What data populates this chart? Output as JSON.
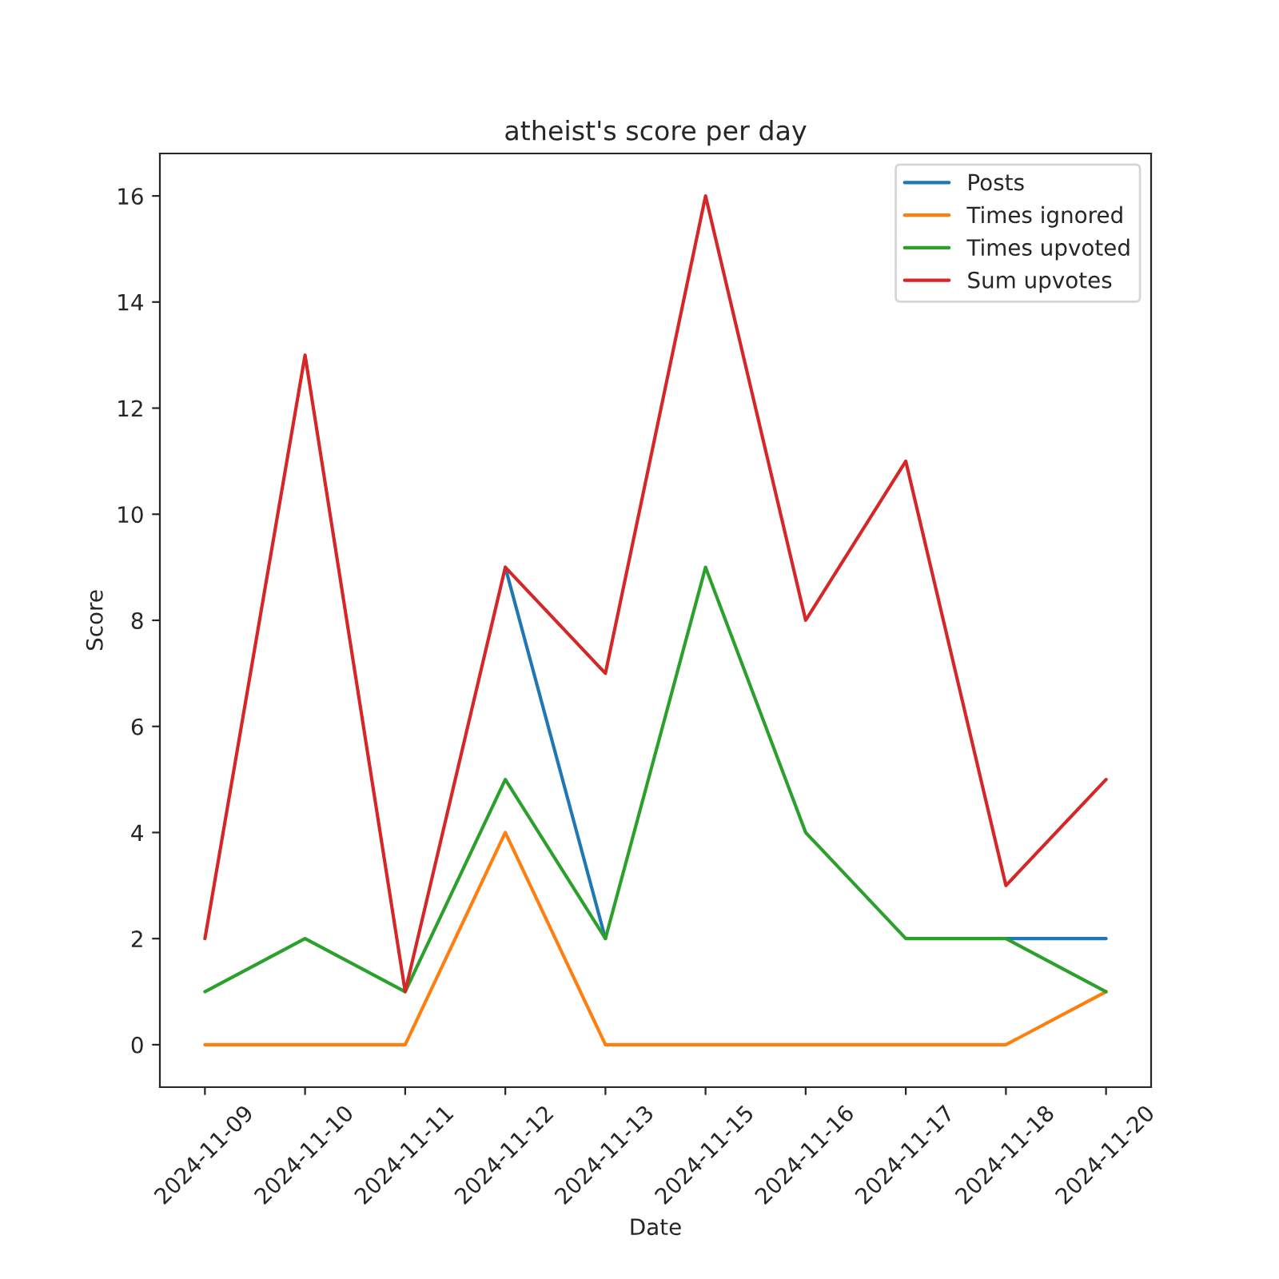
{
  "chart_data": {
    "type": "line",
    "title": "atheist's score per day",
    "xlabel": "Date",
    "ylabel": "Score",
    "categories": [
      "2024-11-09",
      "2024-11-10",
      "2024-11-11",
      "2024-11-12",
      "2024-11-13",
      "2024-11-15",
      "2024-11-16",
      "2024-11-17",
      "2024-11-18",
      "2024-11-20"
    ],
    "series": [
      {
        "name": "Posts",
        "color": "#1f77b4",
        "values": [
          null,
          null,
          null,
          9,
          2,
          null,
          null,
          null,
          2,
          2
        ]
      },
      {
        "name": "Times ignored",
        "color": "#ff7f0e",
        "values": [
          0,
          0,
          0,
          4,
          0,
          0,
          0,
          0,
          0,
          1
        ]
      },
      {
        "name": "Times upvoted",
        "color": "#2ca02c",
        "values": [
          1,
          2,
          1,
          5,
          2,
          9,
          4,
          2,
          2,
          1
        ]
      },
      {
        "name": "Sum upvotes",
        "color": "#d62728",
        "values": [
          2,
          13,
          1,
          9,
          7,
          16,
          8,
          11,
          3,
          5
        ]
      }
    ],
    "ylim": [
      -0.8,
      16.8
    ],
    "yticks": [
      0,
      2,
      4,
      6,
      8,
      10,
      12,
      14,
      16
    ],
    "legend": "top right",
    "grid": false
  }
}
